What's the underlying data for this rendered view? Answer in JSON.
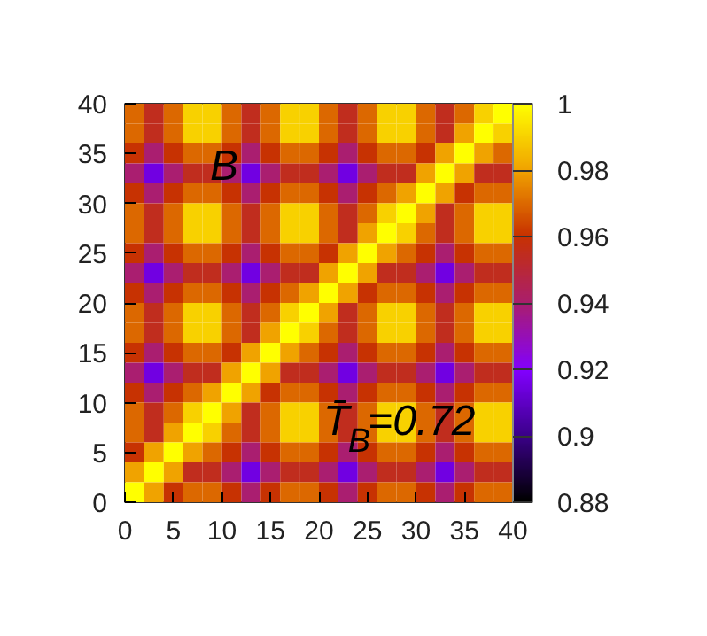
{
  "chart_data": {
    "type": "heatmap",
    "xlim": [
      0,
      40
    ],
    "ylim": [
      0,
      40
    ],
    "xticks": [
      0,
      5,
      10,
      15,
      20,
      25,
      30,
      35,
      40
    ],
    "yticks": [
      0,
      5,
      10,
      15,
      20,
      25,
      30,
      35,
      40
    ],
    "clim": [
      0.88,
      1
    ],
    "cticks": [
      0.88,
      0.9,
      0.92,
      0.94,
      0.96,
      0.98,
      1
    ],
    "annotations": [
      "B",
      "T̄$_{B}$=0.72"
    ],
    "cells": [
      [
        0.97,
        0.955,
        0.97,
        0.99,
        0.99,
        0.97,
        0.955,
        0.97,
        0.99,
        0.99,
        0.97,
        0.955,
        0.97,
        0.99,
        0.99,
        0.97,
        0.955,
        0.97,
        0.99,
        1
      ],
      [
        0.97,
        0.955,
        0.97,
        0.99,
        0.99,
        0.97,
        0.955,
        0.97,
        0.99,
        0.99,
        0.97,
        0.955,
        0.97,
        0.99,
        0.99,
        0.97,
        0.955,
        0.98,
        1,
        0.99
      ],
      [
        0.96,
        0.94,
        0.96,
        0.97,
        0.97,
        0.96,
        0.94,
        0.96,
        0.97,
        0.97,
        0.96,
        0.94,
        0.96,
        0.97,
        0.97,
        0.96,
        0.98,
        1,
        0.98,
        0.97
      ],
      [
        0.94,
        0.915,
        0.94,
        0.955,
        0.955,
        0.94,
        0.915,
        0.94,
        0.955,
        0.955,
        0.94,
        0.915,
        0.94,
        0.955,
        0.955,
        0.98,
        1,
        0.98,
        0.955,
        0.955
      ],
      [
        0.96,
        0.94,
        0.96,
        0.97,
        0.97,
        0.96,
        0.94,
        0.96,
        0.97,
        0.97,
        0.96,
        0.94,
        0.96,
        0.97,
        0.98,
        1,
        0.98,
        0.96,
        0.97,
        0.97
      ],
      [
        0.97,
        0.955,
        0.97,
        0.99,
        0.99,
        0.97,
        0.955,
        0.97,
        0.99,
        0.99,
        0.97,
        0.955,
        0.97,
        0.99,
        1,
        0.98,
        0.955,
        0.97,
        0.99,
        0.99
      ],
      [
        0.97,
        0.955,
        0.97,
        0.99,
        0.99,
        0.97,
        0.955,
        0.97,
        0.99,
        0.99,
        0.97,
        0.955,
        0.98,
        1,
        0.99,
        0.97,
        0.955,
        0.97,
        0.99,
        0.99
      ],
      [
        0.96,
        0.94,
        0.96,
        0.97,
        0.97,
        0.96,
        0.94,
        0.96,
        0.97,
        0.97,
        0.96,
        0.98,
        1,
        0.98,
        0.97,
        0.96,
        0.94,
        0.96,
        0.97,
        0.97
      ],
      [
        0.94,
        0.915,
        0.94,
        0.955,
        0.955,
        0.94,
        0.915,
        0.94,
        0.955,
        0.955,
        0.98,
        1,
        0.98,
        0.955,
        0.955,
        0.94,
        0.915,
        0.94,
        0.955,
        0.955
      ],
      [
        0.96,
        0.94,
        0.96,
        0.97,
        0.97,
        0.96,
        0.94,
        0.96,
        0.97,
        0.98,
        1,
        0.98,
        0.96,
        0.97,
        0.97,
        0.96,
        0.94,
        0.96,
        0.97,
        0.97
      ],
      [
        0.97,
        0.955,
        0.97,
        0.99,
        0.99,
        0.97,
        0.955,
        0.97,
        0.99,
        1,
        0.98,
        0.955,
        0.97,
        0.99,
        0.99,
        0.97,
        0.955,
        0.97,
        0.99,
        0.99
      ],
      [
        0.97,
        0.955,
        0.97,
        0.99,
        0.99,
        0.97,
        0.955,
        0.98,
        1,
        0.99,
        0.97,
        0.955,
        0.97,
        0.99,
        0.99,
        0.97,
        0.955,
        0.97,
        0.99,
        0.99
      ],
      [
        0.96,
        0.94,
        0.96,
        0.97,
        0.97,
        0.96,
        0.98,
        1,
        0.98,
        0.97,
        0.96,
        0.94,
        0.96,
        0.97,
        0.97,
        0.96,
        0.94,
        0.96,
        0.97,
        0.97
      ],
      [
        0.94,
        0.915,
        0.94,
        0.955,
        0.955,
        0.98,
        1,
        0.98,
        0.955,
        0.955,
        0.94,
        0.915,
        0.94,
        0.955,
        0.955,
        0.94,
        0.915,
        0.94,
        0.955,
        0.955
      ],
      [
        0.96,
        0.94,
        0.96,
        0.97,
        0.98,
        1,
        0.98,
        0.96,
        0.97,
        0.97,
        0.96,
        0.94,
        0.96,
        0.97,
        0.97,
        0.96,
        0.94,
        0.96,
        0.97,
        0.97
      ],
      [
        0.97,
        0.955,
        0.97,
        0.99,
        1,
        0.98,
        0.955,
        0.97,
        0.99,
        0.99,
        0.97,
        0.955,
        0.97,
        0.99,
        0.99,
        0.97,
        0.955,
        0.97,
        0.99,
        0.99
      ],
      [
        0.97,
        0.955,
        0.98,
        1,
        0.99,
        0.97,
        0.955,
        0.97,
        0.99,
        0.99,
        0.97,
        0.955,
        0.97,
        0.99,
        0.99,
        0.97,
        0.955,
        0.97,
        0.99,
        0.99
      ],
      [
        0.96,
        0.98,
        1,
        0.98,
        0.97,
        0.96,
        0.94,
        0.96,
        0.97,
        0.97,
        0.96,
        0.94,
        0.96,
        0.97,
        0.97,
        0.96,
        0.94,
        0.96,
        0.97,
        0.97
      ],
      [
        0.98,
        1,
        0.98,
        0.955,
        0.955,
        0.94,
        0.915,
        0.94,
        0.955,
        0.955,
        0.94,
        0.915,
        0.94,
        0.955,
        0.955,
        0.94,
        0.915,
        0.94,
        0.955,
        0.955
      ],
      [
        1,
        0.98,
        0.96,
        0.97,
        0.97,
        0.96,
        0.94,
        0.96,
        0.97,
        0.97,
        0.96,
        0.94,
        0.96,
        0.97,
        0.97,
        0.96,
        0.94,
        0.96,
        0.97,
        0.97
      ]
    ]
  }
}
